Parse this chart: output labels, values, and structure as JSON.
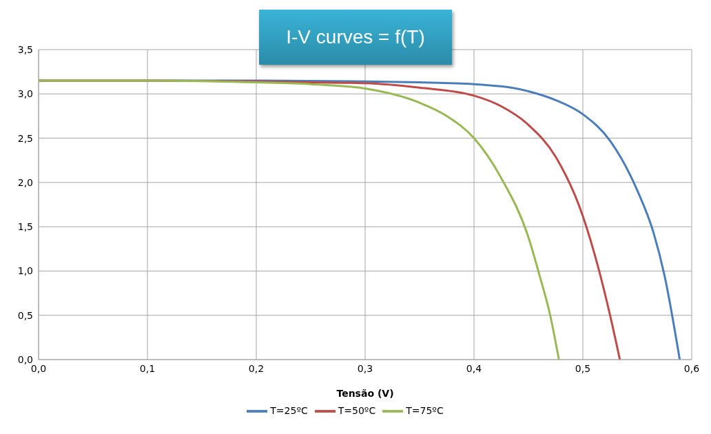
{
  "chart_data": {
    "type": "line",
    "title": "I-V curves = f(T)",
    "xlabel": "Tensão (V)",
    "xlim": [
      0,
      0.6
    ],
    "xticks": [
      {
        "value": 0,
        "label": "0,0"
      },
      {
        "value": 0.1,
        "label": "0,1"
      },
      {
        "value": 0.2,
        "label": "0,2"
      },
      {
        "value": 0.3,
        "label": "0,3"
      },
      {
        "value": 0.4,
        "label": "0,4"
      },
      {
        "value": 0.5,
        "label": "0,5"
      },
      {
        "value": 0.6,
        "label": "0,6"
      }
    ],
    "ylim": [
      0,
      3.5
    ],
    "yticks": [
      {
        "value": 0,
        "label": "0,0"
      },
      {
        "value": 0.5,
        "label": "0,5"
      },
      {
        "value": 1,
        "label": "1,0"
      },
      {
        "value": 1.5,
        "label": "1,5"
      },
      {
        "value": 2,
        "label": "2,0"
      },
      {
        "value": 2.5,
        "label": "2,5"
      },
      {
        "value": 3,
        "label": "3,0"
      },
      {
        "value": 3.5,
        "label": "3,5"
      }
    ],
    "grid": true,
    "legend": "bottom",
    "marker": "none",
    "line_style": "solid",
    "series": [
      {
        "name": "T=25ºC",
        "color": "#4a7ebb",
        "x": [
          0,
          0.1,
          0.2,
          0.3,
          0.35,
          0.4,
          0.45,
          0.475,
          0.5,
          0.525,
          0.55,
          0.565,
          0.575,
          0.589
        ],
        "values": [
          3.15,
          3.15,
          3.15,
          3.14,
          3.13,
          3.11,
          3.03,
          2.93,
          2.77,
          2.47,
          1.91,
          1.43,
          0.95,
          0
        ]
      },
      {
        "name": "T=50ºC",
        "color": "#be4b48",
        "x": [
          0,
          0.1,
          0.2,
          0.25,
          0.3,
          0.35,
          0.4,
          0.425,
          0.45,
          0.475,
          0.5,
          0.515,
          0.525,
          0.534
        ],
        "values": [
          3.15,
          3.15,
          3.14,
          3.13,
          3.12,
          3.07,
          2.98,
          2.86,
          2.65,
          2.29,
          1.62,
          1.0,
          0.5,
          0
        ]
      },
      {
        "name": "T=75ºC",
        "color": "#98b954",
        "x": [
          0,
          0.1,
          0.2,
          0.25,
          0.3,
          0.35,
          0.375,
          0.4,
          0.425,
          0.45,
          0.46,
          0.47,
          0.478
        ],
        "values": [
          3.15,
          3.15,
          3.13,
          3.11,
          3.06,
          2.9,
          2.75,
          2.5,
          2.05,
          1.38,
          0.96,
          0.5,
          0
        ]
      }
    ]
  }
}
